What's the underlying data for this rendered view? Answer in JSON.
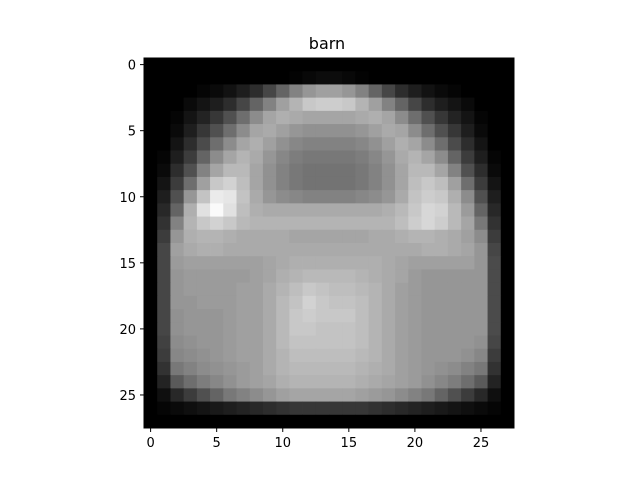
{
  "chart_data": {
    "type": "heatmap",
    "title": "barn",
    "xlabel": "",
    "ylabel": "",
    "colormap": "gray",
    "grid": false,
    "xlim": [
      -0.5,
      27.5
    ],
    "ylim": [
      27.5,
      -0.5
    ],
    "xticks": [
      0,
      5,
      10,
      15,
      20,
      25
    ],
    "yticks": [
      0,
      5,
      10,
      15,
      20,
      25
    ],
    "rows": 28,
    "cols": 28,
    "value_range": [
      0,
      255
    ],
    "values": [
      [
        0,
        0,
        0,
        0,
        0,
        0,
        0,
        0,
        0,
        0,
        0,
        0,
        0,
        0,
        0,
        0,
        0,
        0,
        0,
        0,
        0,
        0,
        0,
        0,
        0,
        0,
        0,
        0
      ],
      [
        0,
        0,
        0,
        0,
        0,
        0,
        0,
        0,
        0,
        0,
        0,
        3,
        8,
        12,
        12,
        8,
        3,
        0,
        0,
        0,
        0,
        0,
        0,
        0,
        0,
        0,
        0,
        0
      ],
      [
        0,
        0,
        0,
        0,
        5,
        10,
        18,
        30,
        45,
        70,
        100,
        130,
        150,
        160,
        160,
        150,
        130,
        100,
        70,
        45,
        30,
        18,
        10,
        5,
        0,
        0,
        0,
        0
      ],
      [
        0,
        0,
        0,
        10,
        20,
        30,
        45,
        70,
        100,
        130,
        160,
        180,
        200,
        205,
        205,
        200,
        180,
        160,
        130,
        100,
        70,
        45,
        30,
        20,
        10,
        0,
        0,
        0
      ],
      [
        0,
        0,
        5,
        20,
        35,
        55,
        80,
        110,
        140,
        165,
        175,
        170,
        165,
        165,
        165,
        165,
        170,
        175,
        165,
        140,
        110,
        80,
        55,
        35,
        20,
        5,
        0,
        0
      ],
      [
        0,
        0,
        10,
        30,
        55,
        80,
        110,
        140,
        165,
        170,
        160,
        150,
        145,
        145,
        145,
        145,
        150,
        160,
        170,
        165,
        140,
        110,
        80,
        55,
        30,
        10,
        0,
        0
      ],
      [
        0,
        0,
        20,
        45,
        75,
        110,
        140,
        165,
        175,
        160,
        145,
        135,
        130,
        130,
        130,
        130,
        135,
        145,
        160,
        175,
        165,
        140,
        110,
        75,
        45,
        20,
        0,
        0
      ],
      [
        0,
        5,
        30,
        60,
        100,
        140,
        165,
        180,
        170,
        150,
        135,
        125,
        120,
        120,
        120,
        120,
        125,
        135,
        150,
        170,
        180,
        165,
        140,
        100,
        60,
        30,
        5,
        0
      ],
      [
        0,
        10,
        45,
        80,
        130,
        165,
        185,
        185,
        165,
        145,
        130,
        120,
        115,
        115,
        115,
        115,
        120,
        130,
        145,
        165,
        185,
        185,
        165,
        130,
        80,
        45,
        10,
        0
      ],
      [
        0,
        20,
        60,
        110,
        160,
        200,
        210,
        190,
        165,
        145,
        130,
        120,
        115,
        115,
        115,
        115,
        120,
        130,
        145,
        165,
        190,
        200,
        190,
        160,
        110,
        60,
        20,
        0
      ],
      [
        0,
        30,
        80,
        150,
        195,
        235,
        230,
        195,
        170,
        150,
        140,
        135,
        130,
        130,
        130,
        130,
        135,
        140,
        150,
        170,
        195,
        205,
        200,
        175,
        140,
        80,
        30,
        0
      ],
      [
        0,
        40,
        100,
        175,
        225,
        250,
        225,
        190,
        175,
        170,
        170,
        170,
        170,
        170,
        170,
        170,
        170,
        170,
        175,
        185,
        200,
        215,
        210,
        185,
        155,
        100,
        40,
        0
      ],
      [
        0,
        50,
        130,
        180,
        200,
        210,
        200,
        185,
        180,
        180,
        180,
        180,
        180,
        180,
        180,
        180,
        180,
        180,
        180,
        190,
        205,
        215,
        205,
        185,
        165,
        120,
        50,
        0
      ],
      [
        0,
        60,
        150,
        175,
        180,
        180,
        175,
        170,
        170,
        170,
        170,
        165,
        165,
        165,
        165,
        165,
        165,
        170,
        170,
        175,
        180,
        180,
        175,
        170,
        160,
        140,
        60,
        0
      ],
      [
        0,
        70,
        160,
        170,
        175,
        175,
        170,
        170,
        170,
        170,
        170,
        170,
        170,
        170,
        170,
        170,
        170,
        170,
        170,
        170,
        170,
        175,
        175,
        170,
        165,
        150,
        70,
        0
      ],
      [
        0,
        70,
        155,
        160,
        160,
        160,
        160,
        160,
        160,
        165,
        170,
        175,
        175,
        175,
        175,
        175,
        175,
        175,
        170,
        165,
        160,
        160,
        160,
        160,
        160,
        150,
        75,
        0
      ],
      [
        0,
        70,
        150,
        155,
        155,
        155,
        155,
        155,
        160,
        165,
        175,
        180,
        185,
        185,
        185,
        185,
        180,
        175,
        170,
        165,
        155,
        150,
        150,
        150,
        150,
        150,
        75,
        0
      ],
      [
        0,
        70,
        150,
        155,
        155,
        155,
        155,
        160,
        160,
        170,
        180,
        190,
        200,
        195,
        190,
        190,
        185,
        180,
        170,
        160,
        155,
        150,
        150,
        150,
        150,
        150,
        75,
        0
      ],
      [
        0,
        70,
        150,
        150,
        155,
        155,
        155,
        160,
        160,
        170,
        185,
        195,
        210,
        200,
        195,
        195,
        190,
        180,
        170,
        160,
        155,
        150,
        150,
        150,
        150,
        150,
        75,
        0
      ],
      [
        0,
        70,
        145,
        150,
        150,
        150,
        155,
        160,
        160,
        170,
        185,
        200,
        205,
        200,
        200,
        200,
        190,
        180,
        170,
        160,
        155,
        150,
        150,
        150,
        150,
        150,
        75,
        0
      ],
      [
        0,
        70,
        145,
        150,
        150,
        150,
        155,
        160,
        160,
        170,
        185,
        200,
        200,
        195,
        195,
        195,
        190,
        180,
        170,
        160,
        155,
        150,
        150,
        150,
        150,
        150,
        75,
        0
      ],
      [
        0,
        65,
        140,
        145,
        150,
        150,
        155,
        160,
        160,
        170,
        185,
        195,
        195,
        195,
        195,
        195,
        190,
        180,
        170,
        160,
        155,
        150,
        150,
        150,
        150,
        145,
        70,
        0
      ],
      [
        0,
        60,
        135,
        140,
        145,
        150,
        155,
        160,
        160,
        170,
        180,
        190,
        190,
        190,
        190,
        190,
        185,
        180,
        170,
        160,
        155,
        150,
        150,
        150,
        145,
        135,
        60,
        0
      ],
      [
        0,
        50,
        120,
        130,
        140,
        145,
        150,
        155,
        160,
        170,
        180,
        185,
        185,
        185,
        185,
        185,
        180,
        175,
        170,
        160,
        155,
        150,
        145,
        140,
        130,
        120,
        50,
        0
      ],
      [
        0,
        35,
        90,
        110,
        125,
        135,
        145,
        155,
        160,
        165,
        175,
        180,
        180,
        180,
        180,
        180,
        175,
        170,
        165,
        160,
        155,
        145,
        135,
        125,
        110,
        90,
        35,
        0
      ],
      [
        0,
        15,
        40,
        60,
        80,
        100,
        120,
        130,
        140,
        150,
        160,
        165,
        165,
        165,
        165,
        165,
        160,
        155,
        150,
        140,
        130,
        120,
        100,
        80,
        60,
        40,
        15,
        0
      ],
      [
        0,
        5,
        10,
        15,
        20,
        25,
        30,
        35,
        40,
        45,
        50,
        55,
        55,
        55,
        55,
        55,
        55,
        50,
        45,
        40,
        35,
        30,
        25,
        20,
        15,
        10,
        5,
        0
      ],
      [
        0,
        0,
        0,
        0,
        0,
        0,
        0,
        0,
        0,
        0,
        0,
        0,
        0,
        0,
        0,
        0,
        0,
        0,
        0,
        0,
        0,
        0,
        0,
        0,
        0,
        0,
        0,
        0
      ]
    ]
  }
}
